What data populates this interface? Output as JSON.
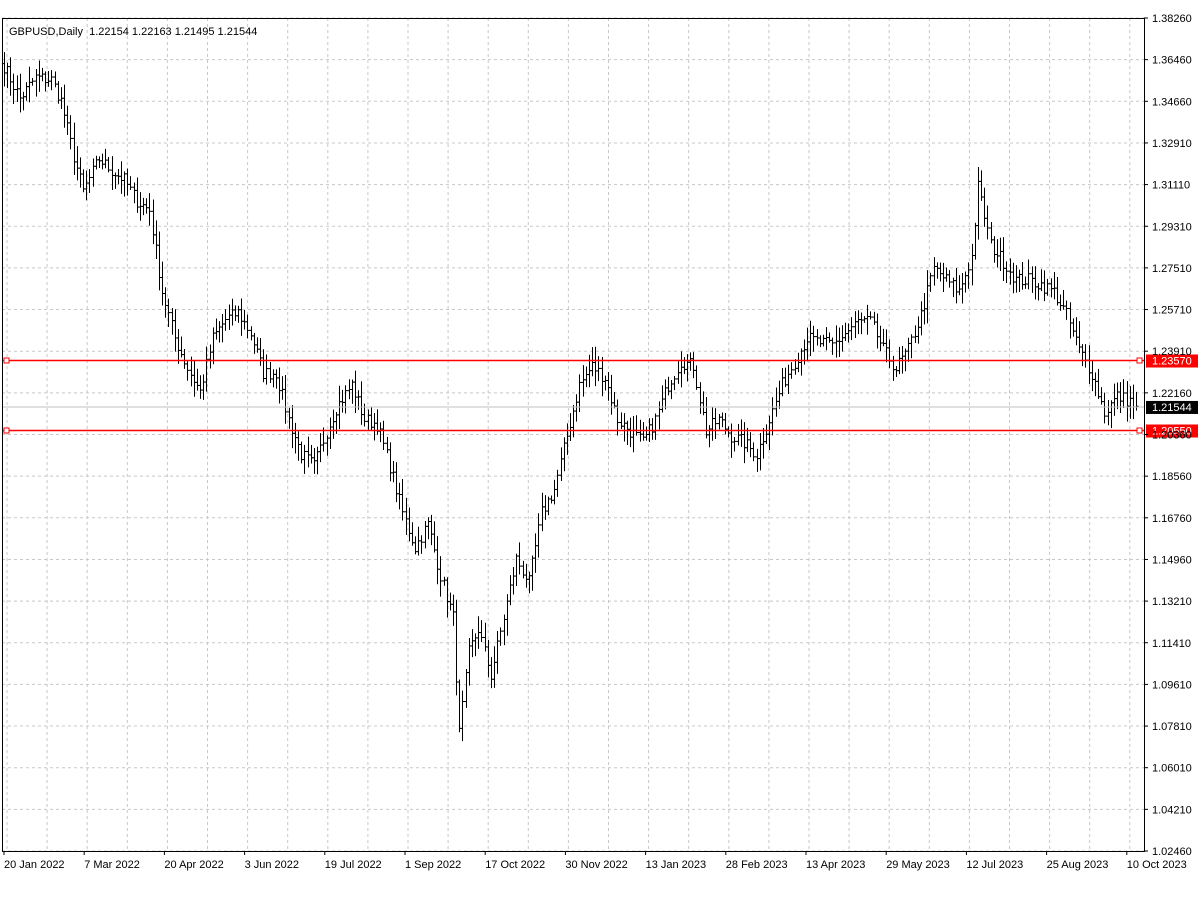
{
  "header": {
    "symbol": "GBPUSD,Daily",
    "ohlc": "1.22154 1.22163 1.21495 1.21544"
  },
  "colors": {
    "background": "#ffffff",
    "grid": "#c8c8c8",
    "bars": "#000000",
    "level_line": "#ff0000",
    "current_price_bg": "#000000",
    "current_price_line": "#c0c0c0"
  },
  "chart_data": {
    "type": "ohlc_bar",
    "symbol": "GBPUSD",
    "timeframe": "Daily",
    "grid": true,
    "ylim": [
      1.0246,
      1.3826
    ],
    "y_ticks": [
      "1.38260",
      "1.36460",
      "1.34660",
      "1.32910",
      "1.31110",
      "1.29310",
      "1.27510",
      "1.25710",
      "1.23910",
      "1.22160",
      "1.20360",
      "1.18560",
      "1.16760",
      "1.14960",
      "1.13210",
      "1.11410",
      "1.09610",
      "1.07810",
      "1.06010",
      "1.04210",
      "1.02460"
    ],
    "x_ticks": [
      "20 Jan 2022",
      "7 Mar 2022",
      "20 Apr 2022",
      "3 Jun 2022",
      "19 Jul 2022",
      "1 Sep 2022",
      "17 Oct 2022",
      "30 Nov 2022",
      "13 Jan 2023",
      "28 Feb 2023",
      "13 Apr 2023",
      "29 May 2023",
      "12 Jul 2023",
      "25 Aug 2023",
      "10 Oct 2023"
    ],
    "path_anchors": [
      [
        0,
        1.362
      ],
      [
        5,
        1.348
      ],
      [
        10,
        1.357
      ],
      [
        15,
        1.356
      ],
      [
        18,
        1.347
      ],
      [
        22,
        1.323
      ],
      [
        25,
        1.308
      ],
      [
        30,
        1.322
      ],
      [
        34,
        1.317
      ],
      [
        38,
        1.313
      ],
      [
        42,
        1.304
      ],
      [
        46,
        1.3
      ],
      [
        50,
        1.265
      ],
      [
        54,
        1.245
      ],
      [
        58,
        1.232
      ],
      [
        62,
        1.222
      ],
      [
        66,
        1.245
      ],
      [
        70,
        1.253
      ],
      [
        74,
        1.256
      ],
      [
        78,
        1.247
      ],
      [
        82,
        1.23
      ],
      [
        86,
        1.23
      ],
      [
        90,
        1.21
      ],
      [
        94,
        1.195
      ],
      [
        98,
        1.19
      ],
      [
        102,
        1.205
      ],
      [
        105,
        1.215
      ],
      [
        110,
        1.225
      ],
      [
        114,
        1.21
      ],
      [
        118,
        1.208
      ],
      [
        122,
        1.19
      ],
      [
        126,
        1.17
      ],
      [
        130,
        1.155
      ],
      [
        134,
        1.165
      ],
      [
        138,
        1.143
      ],
      [
        142,
        1.125
      ],
      [
        144,
        1.075
      ],
      [
        147,
        1.11
      ],
      [
        150,
        1.12
      ],
      [
        154,
        1.1
      ],
      [
        158,
        1.125
      ],
      [
        162,
        1.15
      ],
      [
        166,
        1.14
      ],
      [
        170,
        1.17
      ],
      [
        174,
        1.18
      ],
      [
        178,
        1.203
      ],
      [
        182,
        1.225
      ],
      [
        186,
        1.233
      ],
      [
        190,
        1.228
      ],
      [
        194,
        1.21
      ],
      [
        198,
        1.205
      ],
      [
        202,
        1.2
      ],
      [
        206,
        1.21
      ],
      [
        210,
        1.225
      ],
      [
        214,
        1.235
      ],
      [
        218,
        1.233
      ],
      [
        222,
        1.205
      ],
      [
        226,
        1.21
      ],
      [
        230,
        1.203
      ],
      [
        234,
        1.2
      ],
      [
        238,
        1.195
      ],
      [
        242,
        1.21
      ],
      [
        246,
        1.225
      ],
      [
        250,
        1.235
      ],
      [
        254,
        1.245
      ],
      [
        258,
        1.243
      ],
      [
        262,
        1.242
      ],
      [
        266,
        1.247
      ],
      [
        270,
        1.252
      ],
      [
        274,
        1.252
      ],
      [
        278,
        1.24
      ],
      [
        282,
        1.232
      ],
      [
        286,
        1.24
      ],
      [
        290,
        1.255
      ],
      [
        294,
        1.275
      ],
      [
        298,
        1.27
      ],
      [
        302,
        1.265
      ],
      [
        306,
        1.28
      ],
      [
        308,
        1.31
      ],
      [
        312,
        1.285
      ],
      [
        316,
        1.278
      ],
      [
        320,
        1.27
      ],
      [
        324,
        1.27
      ],
      [
        328,
        1.268
      ],
      [
        332,
        1.265
      ],
      [
        336,
        1.255
      ],
      [
        340,
        1.24
      ],
      [
        344,
        1.23
      ],
      [
        348,
        1.213
      ],
      [
        352,
        1.22
      ],
      [
        356,
        1.218
      ],
      [
        358,
        1.214
      ]
    ],
    "levels": [
      {
        "label": "1.23570",
        "value": 1.2357
      },
      {
        "label": "1.20550",
        "value": 1.2055
      }
    ],
    "current_price": {
      "label": "1.21544",
      "value": 1.21544
    }
  }
}
